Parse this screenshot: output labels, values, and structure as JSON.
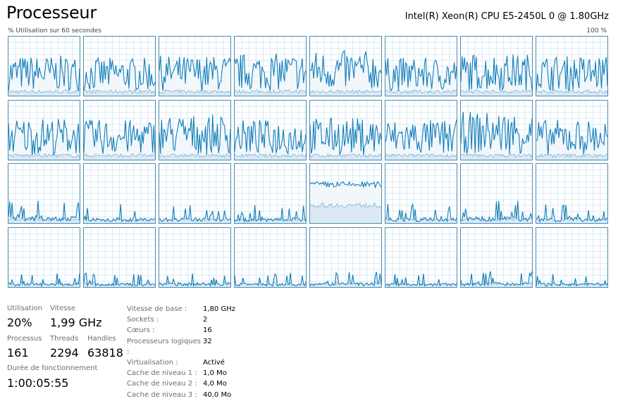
{
  "header": {
    "title": "Processeur",
    "cpu_model": "Intel(R) Xeon(R) CPU E5-2450L 0 @ 1.80GHz"
  },
  "graph": {
    "left_label": "% Utilisation sur 60 secondes",
    "right_label": "100 %",
    "colors": {
      "line": "#117dbb",
      "kernel_line": "#7fb3d5",
      "fill": "#f1f6fa",
      "grid": "#d9eaf4",
      "border": "#4a8db0"
    },
    "logical_processors_approx_utilization_percent": [
      40,
      38,
      40,
      42,
      45,
      38,
      42,
      40,
      42,
      40,
      45,
      40,
      42,
      40,
      48,
      40,
      10,
      8,
      8,
      8,
      65,
      8,
      10,
      8,
      6,
      6,
      7,
      6,
      7,
      6,
      7,
      6
    ]
  },
  "stats": {
    "utilisation": {
      "label": "Utilisation",
      "value": "20%"
    },
    "vitesse": {
      "label": "Vitesse",
      "value": "1,99 GHz"
    },
    "processus": {
      "label": "Processus",
      "value": "161"
    },
    "threads": {
      "label": "Threads",
      "value": "2294"
    },
    "handles": {
      "label": "Handles",
      "value": "63818"
    },
    "uptime": {
      "label": "Durée de fonctionnement",
      "value": "1:00:05:55"
    }
  },
  "details": [
    {
      "key": "Vitesse de base :",
      "value": "1,80 GHz"
    },
    {
      "key": "Sockets :",
      "value": "2"
    },
    {
      "key": "Cœurs :",
      "value": "16"
    },
    {
      "key": "Processeurs logiques :",
      "value": "32"
    },
    {
      "key": "Virtualisation :",
      "value": "Activé"
    },
    {
      "key": "Cache de niveau 1 :",
      "value": "1,0 Mo"
    },
    {
      "key": "Cache de niveau 2 :",
      "value": "4,0 Mo"
    },
    {
      "key": "Cache de niveau 3 :",
      "value": "40,0 Mo"
    }
  ]
}
